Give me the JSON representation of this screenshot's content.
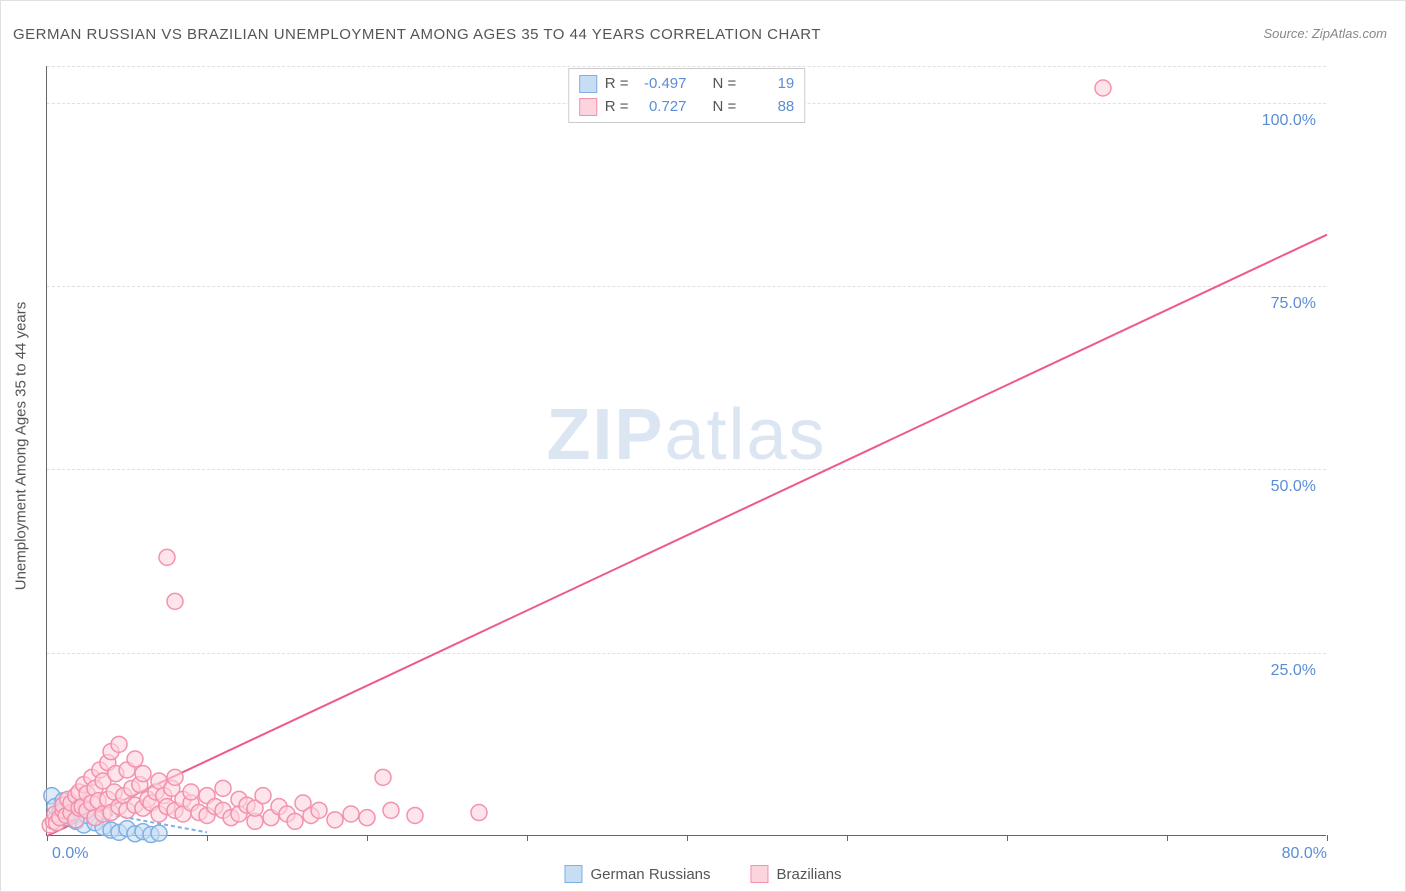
{
  "title": "GERMAN RUSSIAN VS BRAZILIAN UNEMPLOYMENT AMONG AGES 35 TO 44 YEARS CORRELATION CHART",
  "source": "Source: ZipAtlas.com",
  "watermark_zip": "ZIP",
  "watermark_atlas": "atlas",
  "yaxis_label": "Unemployment Among Ages 35 to 44 years",
  "chart": {
    "type": "scatter",
    "xlim": [
      0,
      80
    ],
    "ylim": [
      0,
      105
    ],
    "x_ticks": [
      0,
      10,
      20,
      30,
      40,
      50,
      60,
      70,
      80
    ],
    "x_tick_labels_shown": {
      "0": "0.0%",
      "80": "80.0%"
    },
    "y_gridlines": [
      25,
      50,
      75,
      100,
      105
    ],
    "y_tick_labels": {
      "25": "25.0%",
      "50": "50.0%",
      "75": "75.0%",
      "100": "100.0%"
    },
    "background_color": "#ffffff",
    "grid_color": "#e0e0e0",
    "axis_color": "#666666",
    "tick_label_color": "#5b8dd6",
    "title_color": "#555555",
    "series": [
      {
        "name": "German Russians",
        "legend_label": "German Russians",
        "color_fill": "#c7ddf4",
        "color_stroke": "#7fb0e5",
        "marker_radius": 8,
        "R": "-0.497",
        "N": "19",
        "regression": {
          "x1": 0,
          "y1": 4.5,
          "x2": 10,
          "y2": 0.5,
          "color": "#7fb0e5",
          "dash": "4,3"
        },
        "points": [
          [
            0.3,
            5.5
          ],
          [
            0.5,
            4.0
          ],
          [
            0.8,
            3.2
          ],
          [
            1.0,
            4.8
          ],
          [
            1.2,
            2.5
          ],
          [
            1.5,
            3.8
          ],
          [
            1.8,
            2.0
          ],
          [
            2.0,
            3.0
          ],
          [
            2.3,
            1.5
          ],
          [
            2.5,
            2.8
          ],
          [
            3.0,
            1.8
          ],
          [
            3.5,
            1.2
          ],
          [
            4.0,
            0.8
          ],
          [
            4.5,
            0.5
          ],
          [
            5.0,
            1.0
          ],
          [
            5.5,
            0.3
          ],
          [
            6.0,
            0.6
          ],
          [
            6.5,
            0.2
          ],
          [
            7.0,
            0.4
          ]
        ]
      },
      {
        "name": "Brazilians",
        "legend_label": "Brazilians",
        "color_fill": "#fbd4de",
        "color_stroke": "#f491ad",
        "marker_radius": 8,
        "R": "0.727",
        "N": "88",
        "regression": {
          "x1": 0,
          "y1": 0,
          "x2": 80,
          "y2": 82,
          "color": "#ed5a8b",
          "dash": null
        },
        "points": [
          [
            0.2,
            1.5
          ],
          [
            0.4,
            2.0
          ],
          [
            0.5,
            3.0
          ],
          [
            0.6,
            1.8
          ],
          [
            0.8,
            2.5
          ],
          [
            1.0,
            3.5
          ],
          [
            1.0,
            4.2
          ],
          [
            1.2,
            2.8
          ],
          [
            1.3,
            5.0
          ],
          [
            1.5,
            3.2
          ],
          [
            1.5,
            4.5
          ],
          [
            1.8,
            2.2
          ],
          [
            1.8,
            5.5
          ],
          [
            2.0,
            3.8
          ],
          [
            2.0,
            6.0
          ],
          [
            2.2,
            4.0
          ],
          [
            2.3,
            7.0
          ],
          [
            2.5,
            3.5
          ],
          [
            2.5,
            5.8
          ],
          [
            2.8,
            4.5
          ],
          [
            2.8,
            8.0
          ],
          [
            3.0,
            2.5
          ],
          [
            3.0,
            6.5
          ],
          [
            3.2,
            4.8
          ],
          [
            3.3,
            9.0
          ],
          [
            3.5,
            3.0
          ],
          [
            3.5,
            7.5
          ],
          [
            3.8,
            5.0
          ],
          [
            3.8,
            10.0
          ],
          [
            4.0,
            11.5
          ],
          [
            4.0,
            3.2
          ],
          [
            4.2,
            6.0
          ],
          [
            4.3,
            8.5
          ],
          [
            4.5,
            4.0
          ],
          [
            4.5,
            12.5
          ],
          [
            4.8,
            5.5
          ],
          [
            5.0,
            3.5
          ],
          [
            5.0,
            9.0
          ],
          [
            5.3,
            6.5
          ],
          [
            5.5,
            4.2
          ],
          [
            5.5,
            10.5
          ],
          [
            5.8,
            7.0
          ],
          [
            6.0,
            3.8
          ],
          [
            6.0,
            8.5
          ],
          [
            6.3,
            5.0
          ],
          [
            6.5,
            4.5
          ],
          [
            6.8,
            6.0
          ],
          [
            7.0,
            3.0
          ],
          [
            7.0,
            7.5
          ],
          [
            7.3,
            5.5
          ],
          [
            7.5,
            4.0
          ],
          [
            7.8,
            6.5
          ],
          [
            8.0,
            3.5
          ],
          [
            8.0,
            8.0
          ],
          [
            8.5,
            5.0
          ],
          [
            8.5,
            3.0
          ],
          [
            9.0,
            4.5
          ],
          [
            9.0,
            6.0
          ],
          [
            9.5,
            3.2
          ],
          [
            10.0,
            5.5
          ],
          [
            10.0,
            2.8
          ],
          [
            10.5,
            4.0
          ],
          [
            11.0,
            3.5
          ],
          [
            11.0,
            6.5
          ],
          [
            11.5,
            2.5
          ],
          [
            12.0,
            5.0
          ],
          [
            12.0,
            3.0
          ],
          [
            12.5,
            4.2
          ],
          [
            13.0,
            2.0
          ],
          [
            13.0,
            3.8
          ],
          [
            13.5,
            5.5
          ],
          [
            14.0,
            2.5
          ],
          [
            14.5,
            4.0
          ],
          [
            15.0,
            3.0
          ],
          [
            15.5,
            2.0
          ],
          [
            16.0,
            4.5
          ],
          [
            16.5,
            2.8
          ],
          [
            17.0,
            3.5
          ],
          [
            18.0,
            2.2
          ],
          [
            19.0,
            3.0
          ],
          [
            20.0,
            2.5
          ],
          [
            21.0,
            8.0
          ],
          [
            21.5,
            3.5
          ],
          [
            23.0,
            2.8
          ],
          [
            27.0,
            3.2
          ],
          [
            7.5,
            38.0
          ],
          [
            8.0,
            32.0
          ],
          [
            66.0,
            102.0
          ]
        ]
      }
    ]
  },
  "stats_labels": {
    "R": "R =",
    "N": "N ="
  }
}
